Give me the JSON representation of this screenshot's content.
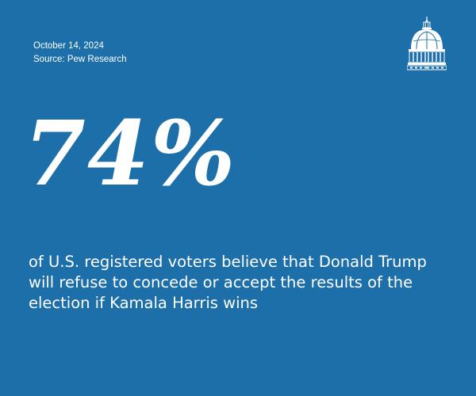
{
  "meta": {
    "date": "October 14, 2024",
    "source": "Source: Pew Research"
  },
  "stat": {
    "value": "74%"
  },
  "statement": {
    "text": "of U.S. registered voters believe that Donald Trump will refuse to concede or accept the results of the election if Kamala Harris wins"
  },
  "logo": {
    "icon": "capitol-dome-icon"
  },
  "colors": {
    "background": "#1d6fa9",
    "text": "#ffffff"
  }
}
